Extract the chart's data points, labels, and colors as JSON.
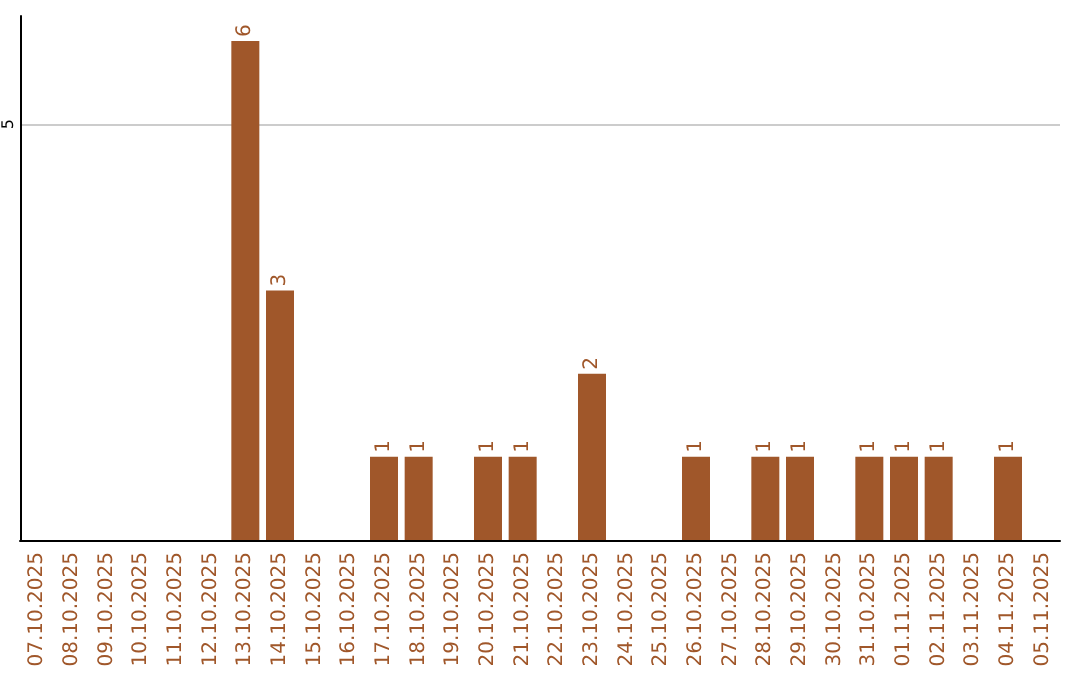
{
  "chart_data": {
    "type": "bar",
    "categories": [
      "07.10.2025",
      "08.10.2025",
      "09.10.2025",
      "10.10.2025",
      "11.10.2025",
      "12.10.2025",
      "13.10.2025",
      "14.10.2025",
      "15.10.2025",
      "16.10.2025",
      "17.10.2025",
      "18.10.2025",
      "19.10.2025",
      "20.10.2025",
      "21.10.2025",
      "22.10.2025",
      "23.10.2025",
      "24.10.2025",
      "25.10.2025",
      "26.10.2025",
      "27.10.2025",
      "28.10.2025",
      "29.10.2025",
      "30.10.2025",
      "31.10.2025",
      "01.11.2025",
      "02.11.2025",
      "03.11.2025",
      "04.11.2025",
      "05.11.2025"
    ],
    "values": [
      0,
      0,
      0,
      0,
      0,
      0,
      6,
      3,
      0,
      0,
      1,
      1,
      0,
      1,
      1,
      0,
      2,
      0,
      0,
      1,
      0,
      1,
      1,
      0,
      1,
      1,
      1,
      0,
      1,
      0
    ],
    "value_labels": [
      null,
      null,
      null,
      null,
      null,
      null,
      "6",
      "3",
      null,
      null,
      "1",
      "1",
      null,
      "1",
      "1",
      null,
      "2",
      null,
      null,
      "1",
      null,
      "1",
      "1",
      null,
      "1",
      "1",
      "1",
      null,
      "1",
      null
    ],
    "color": "#a0572a",
    "ylim": [
      0,
      6.3
    ],
    "yticks": [
      5
    ],
    "grid": "y"
  }
}
